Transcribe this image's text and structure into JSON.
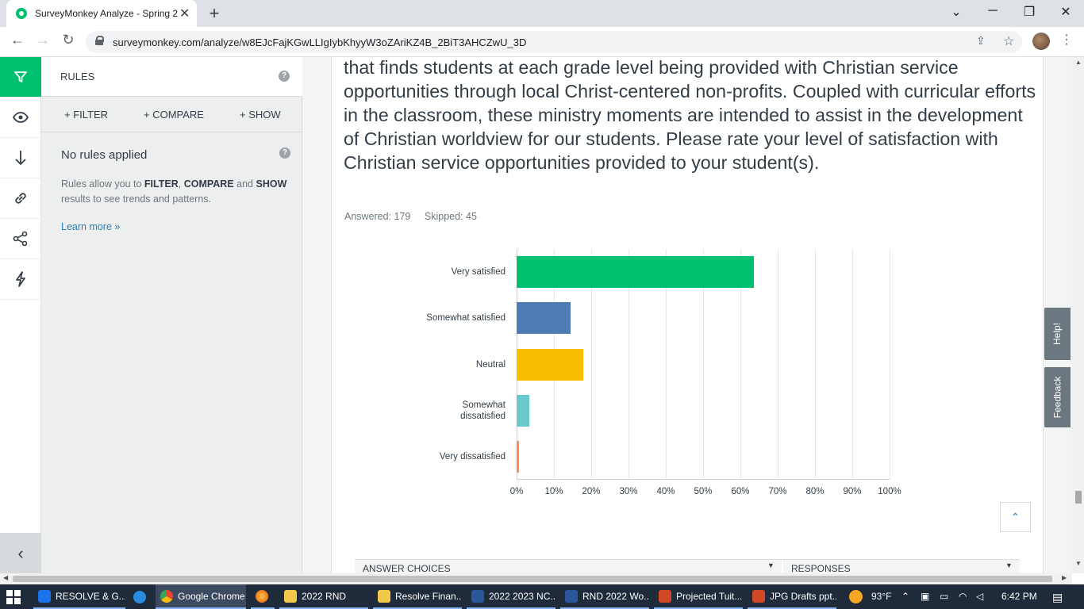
{
  "browser": {
    "tab_title": "SurveyMonkey Analyze - Spring 2",
    "url": "surveymonkey.com/analyze/w8EJcFajKGwLLIgIybKhyyW3oZAriKZ4B_2BiT3AHCZwU_3D"
  },
  "rules_panel": {
    "title": "RULES",
    "actions": [
      "+ FILTER",
      "+ COMPARE",
      "+ SHOW"
    ],
    "no_rules": "No rules applied",
    "desc_1": "Rules allow you to ",
    "desc_filter": "FILTER",
    "desc_comma": ", ",
    "desc_compare": "COMPARE",
    "desc_and": " and ",
    "desc_show": "SHOW",
    "desc_2": " results to see trends and patterns.",
    "learn_more": "Learn more »"
  },
  "question": {
    "text": "that finds students at each grade level being provided with Christian service opportunities through local Christ-centered non-profits.  Coupled with curricular efforts in the classroom, these ministry moments are intended to assist in the development of Christian worldview for our students. Please rate your level of satisfaction with Christian service opportunities provided to your student(s).",
    "answered": "Answered: 179",
    "skipped": "Skipped: 45"
  },
  "chart_data": {
    "type": "bar",
    "orientation": "horizontal",
    "categories": [
      "Very satisfied",
      "Somewhat satisfied",
      "Neutral",
      "Somewhat dissatisfied",
      "Very dissatisfied"
    ],
    "values": [
      63.7,
      14.5,
      17.9,
      3.4,
      0.6
    ],
    "colors": [
      "#00bf6f",
      "#507cb6",
      "#f9be00",
      "#6bc8cd",
      "#ff8b4f"
    ],
    "xlim": [
      0,
      100
    ],
    "ticks": [
      "0%",
      "10%",
      "20%",
      "30%",
      "40%",
      "50%",
      "60%",
      "70%",
      "80%",
      "90%",
      "100%"
    ],
    "grid": true
  },
  "table": {
    "col1": "ANSWER CHOICES",
    "col2": "RESPONSES"
  },
  "side_tabs": {
    "help": "Help!",
    "feedback": "Feedback"
  },
  "taskbar": {
    "items": [
      "RESOLVE & G...",
      "Google Chrome",
      "2022 RND",
      "Resolve Finan...",
      "2022 2023 NC...",
      "RND 2022 Wo...",
      "Projected Tuit...",
      "JPG Drafts ppt..."
    ],
    "weather": "93°F",
    "time": "6:42 PM"
  },
  "colors": {
    "brand_green": "#00bf6f",
    "text": "#333e48",
    "link": "#2a80b9"
  }
}
